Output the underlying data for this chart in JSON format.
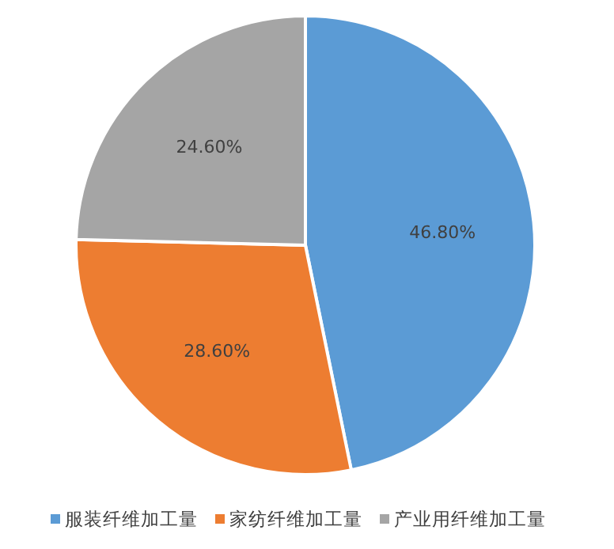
{
  "chart_data": {
    "type": "pie",
    "categories": [
      "服装纤维加工量",
      "家纺纤维加工量",
      "产业用纤维加工量"
    ],
    "values": [
      46.8,
      28.6,
      24.6
    ],
    "colors": [
      "#5b9bd5",
      "#ed7d31",
      "#a5a5a5"
    ],
    "value_labels": [
      "46.80%",
      "28.60%",
      "24.60%"
    ],
    "legend": "bottom"
  }
}
